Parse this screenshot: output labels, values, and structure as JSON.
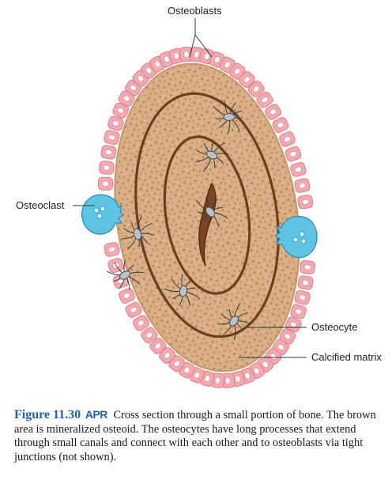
{
  "labels": {
    "osteoblasts": "Osteoblasts",
    "osteoclast": "Osteoclast",
    "osteocyte": "Osteocyte",
    "calcified_matrix": "Calcified matrix"
  },
  "caption": {
    "figure_number": "Figure 11.30",
    "apr": "APR",
    "text": "Cross section through a small portion of bone. The brown area is mineralized osteoid. The osteocytes have long processes that extend through small canals and connect with each other and to osteoblasts via tight junctions (not shown)."
  },
  "colors": {
    "matrix": "#d8ae84",
    "matrix_speckle": "#b0805a",
    "lamella_line": "#6b3e1e",
    "osteoblast": "#f4a9b0",
    "osteoblast_nucleus": "#ffffff",
    "osteoclast": "#5fc3e4",
    "osteocyte": "#b9c2c8",
    "caption_accent": "#1f62a8"
  },
  "icons": {
    "osteoblast": "pink-cell-with-white-nucleus",
    "osteoclast": "blue-multinucleated-cell",
    "osteocyte": "gray-star-shaped-cell"
  }
}
